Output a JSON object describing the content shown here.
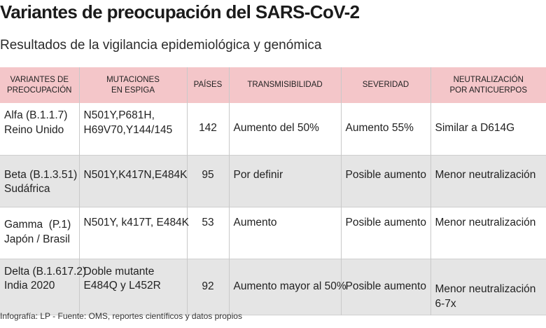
{
  "title": "Variantes de preocupación del SARS-CoV-2",
  "subtitle": "Resultados de la vigilancia epidemiológica y genómica",
  "headers": {
    "variants": [
      "VARIANTES DE",
      "PREOCUPACIÓN"
    ],
    "mutations": [
      "MUTACIONES",
      "EN ESPIGA"
    ],
    "countries": "PAÍSES",
    "transmissibility": "TRANSMISIBILIDAD",
    "severity": "SEVERIDAD",
    "neutralization": [
      "NEUTRALIZACIÓN",
      "POR ANTICUERPOS"
    ]
  },
  "rows": [
    {
      "variant": [
        "Alfa (B.1.1.7)",
        "Reino Unido"
      ],
      "mutations": [
        "N501Y,P681H,",
        "H69V70,Y144/145"
      ],
      "countries": "142",
      "transmissibility": "Aumento del 50%",
      "severity": "Aumento 55%",
      "neutralization": [
        "Similar a D614G"
      ]
    },
    {
      "variant": [
        "Beta (B.1.3.51)",
        "Sudáfrica"
      ],
      "mutations": [
        "N501Y,K417N,E484K"
      ],
      "countries": "95",
      "transmissibility": "Por definir",
      "severity": "Posible aumento",
      "neutralization": [
        "Menor neutralización"
      ]
    },
    {
      "variant": [
        "Gamma  (P.1)",
        "Japón / Brasil"
      ],
      "mutations": [
        "N501Y, k417T, E484K"
      ],
      "countries": "53",
      "transmissibility": "Aumento",
      "severity": "Posible aumento",
      "neutralization": [
        "Menor neutralización"
      ]
    },
    {
      "variant": [
        "Delta (B.1.617.2)",
        "India 2020"
      ],
      "mutations": [
        "Doble mutante",
        "E484Q y L452R"
      ],
      "countries": "92",
      "transmissibility": "Aumento mayor al 50%",
      "severity": "Posible aumento",
      "neutralization": [
        "Menor neutralización",
        "6-7x"
      ]
    }
  ],
  "source": "Infografía: LP - Fuente: OMS, reportes científicos y datos propios",
  "colors": {
    "header_bg": "#f4c6c9",
    "stripe_bg": "#e5e5e5"
  }
}
